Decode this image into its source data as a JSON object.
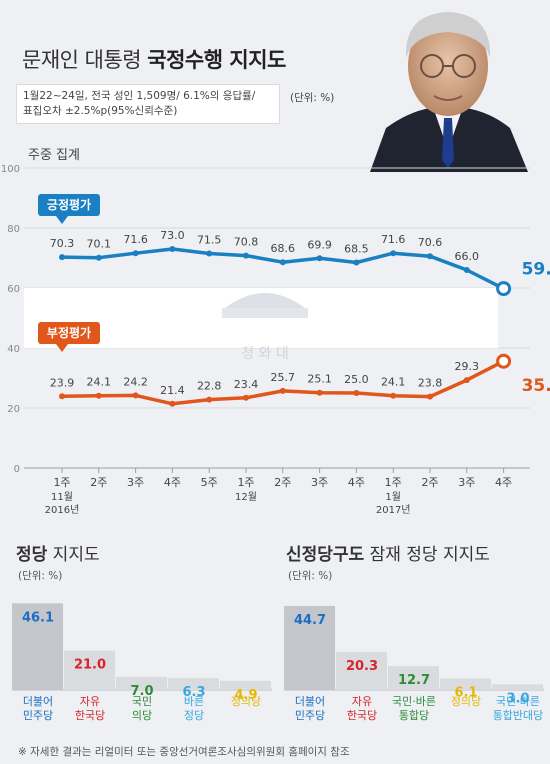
{
  "title_prefix": "문재인 대통령",
  "title_bold": "국정수행 지지도",
  "subtitle_line1": "1월22~24일, 전국 성인 1,509명/ 6.1%의 응답률/",
  "subtitle_line2": "표집오차 ±2.5%p(95%신뢰수준)",
  "unit": "(단위: %)",
  "aggregate_label": "주중 집계",
  "watermark": "청 와 대",
  "footnote": "※ 자세한 결과는 리얼미터 또는 중앙선거여론조사심의위원회 홈페이지 참조",
  "colors": {
    "positive": "#1a7fc3",
    "negative": "#e0561b",
    "bar_first": "#c4c6cb",
    "bar_rest": "#d9dbde"
  },
  "chart_data": [
    {
      "type": "line",
      "title": "문재인 대통령 국정수행 지지도",
      "ylim": [
        0,
        100
      ],
      "yticks": [
        0,
        20,
        40,
        60,
        80,
        100
      ],
      "x": [
        "1주",
        "2주",
        "3주",
        "4주",
        "5주",
        "1주",
        "2주",
        "3주",
        "4주",
        "1주",
        "2주",
        "3주",
        "4주"
      ],
      "groups": [
        {
          "label": "11월",
          "sub": "2016년",
          "start": 0
        },
        {
          "label": "12월",
          "sub": "",
          "start": 5
        },
        {
          "label": "1월",
          "sub": "2017년",
          "start": 9
        }
      ],
      "series": [
        {
          "name": "긍정평가",
          "color": "#1a7fc3",
          "values": [
            70.3,
            70.1,
            71.6,
            73.0,
            71.5,
            70.8,
            68.6,
            69.9,
            68.5,
            71.6,
            70.6,
            66.0,
            59.8
          ],
          "last_label": "59.8%"
        },
        {
          "name": "부정평가",
          "color": "#e0561b",
          "values": [
            23.9,
            24.1,
            24.2,
            21.4,
            22.8,
            23.4,
            25.7,
            25.1,
            25.0,
            24.1,
            23.8,
            29.3,
            35.6
          ],
          "last_label": "35.6%"
        }
      ]
    },
    {
      "type": "bar",
      "title_bold": "정당",
      "title_rest": " 지지도",
      "unit": "(단위: %)",
      "categories": [
        {
          "line1": "더불어",
          "line2": "민주당",
          "color": "#1a6fc3"
        },
        {
          "line1": "자유",
          "line2": "한국당",
          "color": "#d8232a"
        },
        {
          "line1": "국민",
          "line2": "의당",
          "color": "#2e8b3a"
        },
        {
          "line1": "바른",
          "line2": "정당",
          "color": "#36a7e0"
        },
        {
          "line1": "정의당",
          "line2": "",
          "color": "#e6b800"
        }
      ],
      "values": [
        46.1,
        21.0,
        7.0,
        6.3,
        4.9
      ],
      "value_labels": [
        "46.1",
        "21.0",
        "7.0",
        "6.3",
        "4.9"
      ]
    },
    {
      "type": "bar",
      "title_bold": "신정당구도",
      "title_rest": " 잠재 정당 지지도",
      "unit": "(단위: %)",
      "categories": [
        {
          "line1": "더불어",
          "line2": "민주당",
          "color": "#1a6fc3"
        },
        {
          "line1": "자유",
          "line2": "한국당",
          "color": "#d8232a"
        },
        {
          "line1": "국민·바른",
          "line2": "통합당",
          "color": "#2e8b3a"
        },
        {
          "line1": "정의당",
          "line2": "",
          "color": "#e6b800"
        },
        {
          "line1": "국민·바른",
          "line2": "통합반대당",
          "color": "#36a7e0"
        }
      ],
      "values": [
        44.7,
        20.3,
        12.7,
        6.1,
        3.0
      ],
      "value_labels": [
        "44.7",
        "20.3",
        "12.7",
        "6.1",
        "3.0"
      ]
    }
  ]
}
